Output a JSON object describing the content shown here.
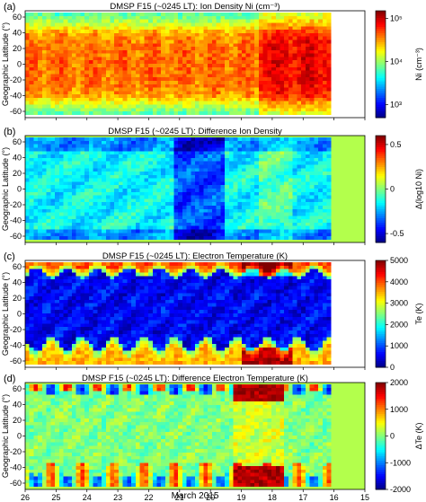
{
  "chart_data": [
    {
      "type": "heatmap",
      "panel_label": "(a)",
      "title": "DMSP F15 (~0245 LT): Ion Density Ni (cm⁻³)",
      "ylabel": "Geographic Latitude (°)",
      "xlabel": "",
      "x_ticks": [
        "26",
        "25",
        "24",
        "23",
        "22",
        "21",
        "20",
        "19",
        "18",
        "17",
        "16",
        "15"
      ],
      "xlim": [
        26,
        15
      ],
      "ylim": [
        -68,
        68
      ],
      "y_ticks": [
        -60,
        -40,
        -20,
        0,
        20,
        40,
        60
      ],
      "data_x_range": [
        26,
        16.1
      ],
      "colorbar": {
        "label": "Ni (cm⁻³)",
        "scale": "log",
        "range": [
          500,
          150000
        ],
        "ticks": [
          "10⁵",
          "10⁴",
          "10³"
        ],
        "colormap": "jet"
      }
    },
    {
      "type": "heatmap",
      "panel_label": "(b)",
      "title": "DMSP F15 (~0245 LT): Difference Ion Density",
      "ylabel": "Geographic Latitude (°)",
      "xlabel": "",
      "x_ticks": [
        "26",
        "25",
        "24",
        "23",
        "22",
        "21",
        "20",
        "19",
        "18",
        "17",
        "16",
        "15"
      ],
      "xlim": [
        26,
        15
      ],
      "ylim": [
        -68,
        68
      ],
      "y_ticks": [
        -60,
        -40,
        -20,
        0,
        20,
        40,
        60
      ],
      "data_x_range": [
        26,
        16.1
      ],
      "colorbar": {
        "label": "Δ(log10 Ni)",
        "scale": "linear",
        "range": [
          -0.6,
          0.6
        ],
        "ticks": [
          "0.5",
          "0",
          "-0.5"
        ],
        "colormap": "jet"
      }
    },
    {
      "type": "heatmap",
      "panel_label": "(c)",
      "title": "DMSP F15 (~0245 LT): Electron Temperature (K)",
      "ylabel": "Geographic Latitude (°)",
      "xlabel": "",
      "x_ticks": [
        "26",
        "25",
        "24",
        "23",
        "22",
        "21",
        "20",
        "19",
        "18",
        "17",
        "16",
        "15"
      ],
      "xlim": [
        26,
        15
      ],
      "ylim": [
        -68,
        68
      ],
      "y_ticks": [
        -60,
        -40,
        -20,
        0,
        20,
        40,
        60
      ],
      "data_x_range": [
        26,
        16.1
      ],
      "colorbar": {
        "label": "Te (K)",
        "scale": "linear",
        "range": [
          0,
          5000
        ],
        "ticks": [
          "5000",
          "4000",
          "3000",
          "2000",
          "1000",
          "0"
        ],
        "colormap": "jet"
      }
    },
    {
      "type": "heatmap",
      "panel_label": "(d)",
      "title": "DMSP F15 (~0245 LT): Difference Electron Temperature (K)",
      "ylabel": "Geographic Latitude (°)",
      "xlabel": "March 2015",
      "x_ticks": [
        "26",
        "25",
        "24",
        "23",
        "22",
        "21",
        "20",
        "19",
        "18",
        "17",
        "16",
        "15"
      ],
      "xlim": [
        26,
        15
      ],
      "ylim": [
        -68,
        68
      ],
      "y_ticks": [
        -60,
        -40,
        -20,
        0,
        20,
        40,
        60
      ],
      "data_x_range": [
        26,
        16.1
      ],
      "colorbar": {
        "label": "ΔTe (K)",
        "scale": "linear",
        "range": [
          -2000,
          2000
        ],
        "ticks": [
          "2000",
          "1000",
          "0",
          "-1000",
          "-2000"
        ],
        "colormap": "jet"
      }
    }
  ]
}
